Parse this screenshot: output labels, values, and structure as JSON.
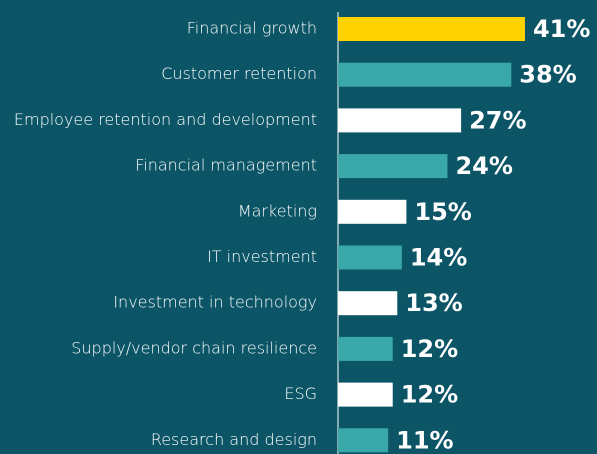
{
  "chart_data": {
    "type": "bar",
    "orientation": "horizontal",
    "categories": [
      "Financial growth",
      "Customer retention",
      "Employee retention and development",
      "Financial management",
      "Marketing",
      "IT investment",
      "Investment in technology",
      "Supply/vendor chain resilience",
      "ESG",
      "Research and design"
    ],
    "values": [
      41,
      38,
      27,
      24,
      15,
      14,
      13,
      12,
      12,
      11
    ],
    "value_labels": [
      "41%",
      "38%",
      "27%",
      "24%",
      "15%",
      "14%",
      "13%",
      "12%",
      "12%",
      "11%"
    ],
    "colors": [
      "#ffd200",
      "#3aa8a8",
      "#ffffff",
      "#3aa8a8",
      "#ffffff",
      "#3aa8a8",
      "#ffffff",
      "#3aa8a8",
      "#ffffff",
      "#3aa8a8"
    ]
  }
}
